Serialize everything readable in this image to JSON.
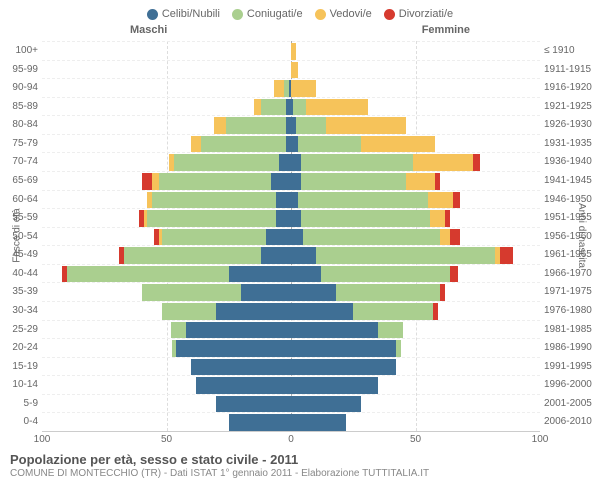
{
  "chart": {
    "type": "population-pyramid",
    "legend": [
      {
        "label": "Celibi/Nubili",
        "color": "#3f6f95"
      },
      {
        "label": "Coniugati/e",
        "color": "#aacf8f"
      },
      {
        "label": "Vedovi/e",
        "color": "#f6c35a"
      },
      {
        "label": "Divorziati/e",
        "color": "#d63a2e"
      }
    ],
    "header_left": "Maschi",
    "header_right": "Femmine",
    "y_title_left": "Fasce di età",
    "y_title_right": "Anni di nascita",
    "x_ticks": [
      100,
      50,
      0,
      50,
      100
    ],
    "x_max": 100,
    "title": "Popolazione per età, sesso e stato civile - 2011",
    "subtitle": "COMUNE DI MONTECCHIO (TR) - Dati ISTAT 1° gennaio 2011 - Elaborazione TUTTITALIA.IT",
    "colors": {
      "single": "#3f6f95",
      "married": "#aacf8f",
      "widowed": "#f6c35a",
      "divorced": "#d63a2e",
      "grid": "#dddddd",
      "center_axis": "#aaaaaa"
    },
    "rows": [
      {
        "age": "100+",
        "birth": "≤ 1910",
        "m": [
          0,
          0,
          0,
          0
        ],
        "f": [
          0,
          0,
          2,
          0
        ]
      },
      {
        "age": "95-99",
        "birth": "1911-1915",
        "m": [
          0,
          0,
          0,
          0
        ],
        "f": [
          0,
          0,
          3,
          0
        ]
      },
      {
        "age": "90-94",
        "birth": "1916-1920",
        "m": [
          1,
          2,
          4,
          0
        ],
        "f": [
          0,
          0,
          10,
          0
        ]
      },
      {
        "age": "85-89",
        "birth": "1921-1925",
        "m": [
          2,
          10,
          3,
          0
        ],
        "f": [
          1,
          5,
          25,
          0
        ]
      },
      {
        "age": "80-84",
        "birth": "1926-1930",
        "m": [
          2,
          24,
          5,
          0
        ],
        "f": [
          2,
          12,
          32,
          0
        ]
      },
      {
        "age": "75-79",
        "birth": "1931-1935",
        "m": [
          2,
          34,
          4,
          0
        ],
        "f": [
          3,
          25,
          30,
          0
        ]
      },
      {
        "age": "70-74",
        "birth": "1936-1940",
        "m": [
          5,
          42,
          2,
          0
        ],
        "f": [
          4,
          45,
          24,
          3
        ]
      },
      {
        "age": "65-69",
        "birth": "1941-1945",
        "m": [
          8,
          45,
          3,
          4
        ],
        "f": [
          4,
          42,
          12,
          2
        ]
      },
      {
        "age": "60-64",
        "birth": "1946-1950",
        "m": [
          6,
          50,
          2,
          0
        ],
        "f": [
          3,
          52,
          10,
          3
        ]
      },
      {
        "age": "55-59",
        "birth": "1951-1955",
        "m": [
          6,
          52,
          1,
          2
        ],
        "f": [
          4,
          52,
          6,
          2
        ]
      },
      {
        "age": "50-54",
        "birth": "1956-1960",
        "m": [
          10,
          42,
          1,
          2
        ],
        "f": [
          5,
          55,
          4,
          4
        ]
      },
      {
        "age": "45-49",
        "birth": "1961-1965",
        "m": [
          12,
          55,
          0,
          2
        ],
        "f": [
          10,
          72,
          2,
          5
        ]
      },
      {
        "age": "40-44",
        "birth": "1966-1970",
        "m": [
          25,
          65,
          0,
          2
        ],
        "f": [
          12,
          52,
          0,
          3
        ]
      },
      {
        "age": "35-39",
        "birth": "1971-1975",
        "m": [
          20,
          40,
          0,
          0
        ],
        "f": [
          18,
          42,
          0,
          2
        ]
      },
      {
        "age": "30-34",
        "birth": "1976-1980",
        "m": [
          30,
          22,
          0,
          0
        ],
        "f": [
          25,
          32,
          0,
          2
        ]
      },
      {
        "age": "25-29",
        "birth": "1981-1985",
        "m": [
          42,
          6,
          0,
          0
        ],
        "f": [
          35,
          10,
          0,
          0
        ]
      },
      {
        "age": "20-24",
        "birth": "1986-1990",
        "m": [
          46,
          2,
          0,
          0
        ],
        "f": [
          42,
          2,
          0,
          0
        ]
      },
      {
        "age": "15-19",
        "birth": "1991-1995",
        "m": [
          40,
          0,
          0,
          0
        ],
        "f": [
          42,
          0,
          0,
          0
        ]
      },
      {
        "age": "10-14",
        "birth": "1996-2000",
        "m": [
          38,
          0,
          0,
          0
        ],
        "f": [
          35,
          0,
          0,
          0
        ]
      },
      {
        "age": "5-9",
        "birth": "2001-2005",
        "m": [
          30,
          0,
          0,
          0
        ],
        "f": [
          28,
          0,
          0,
          0
        ]
      },
      {
        "age": "0-4",
        "birth": "2006-2010",
        "m": [
          25,
          0,
          0,
          0
        ],
        "f": [
          22,
          0,
          0,
          0
        ]
      }
    ]
  }
}
